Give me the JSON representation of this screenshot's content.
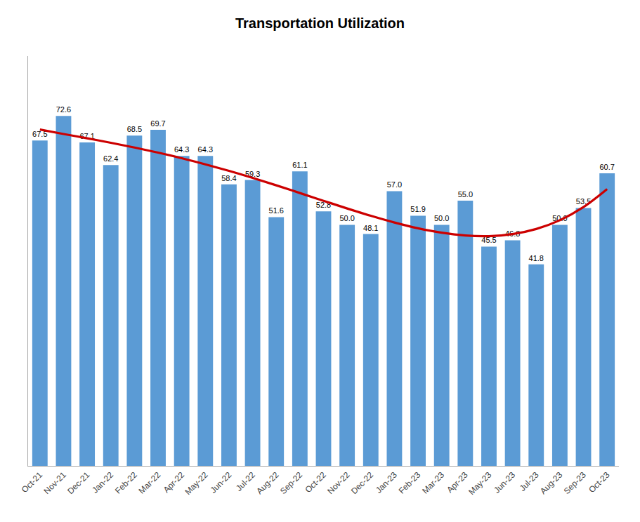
{
  "chart_data": {
    "type": "bar",
    "title": "Transportation Utilization",
    "categories": [
      "Oct-21",
      "Nov-21",
      "Dec-21",
      "Jan-22",
      "Feb-22",
      "Mar-22",
      "Apr-22",
      "May-22",
      "Jun-22",
      "Jul-22",
      "Aug-22",
      "Sep-22",
      "Oct-22",
      "Nov-22",
      "Dec-22",
      "Jan-23",
      "Feb-23",
      "Mar-23",
      "Apr-23",
      "May-23",
      "Jun-23",
      "Jul-23",
      "Aug-23",
      "Sep-23",
      "Oct-23"
    ],
    "series": [
      {
        "type": "bar",
        "color": "#5b9bd5",
        "values": [
          67.5,
          72.6,
          67.1,
          62.4,
          68.5,
          69.7,
          64.3,
          64.3,
          58.4,
          59.3,
          51.6,
          61.1,
          52.8,
          50.0,
          48.1,
          57.0,
          51.9,
          50.0,
          55.0,
          45.5,
          46.8,
          41.8,
          50.0,
          53.5,
          60.7
        ],
        "value_labels": [
          "67.5",
          "72.6",
          "67.1",
          "62.4",
          "68.5",
          "69.7",
          "64.3",
          "64.3",
          "58.4",
          "59.3",
          "51.6",
          "61.1",
          "52.8",
          "50.0",
          "48.1",
          "57.0",
          "51.9",
          "50.0",
          "55.0",
          "45.5",
          "46.8",
          "41.8",
          "50.0",
          "53.5",
          "60.7"
        ]
      },
      {
        "type": "line",
        "color": "#cc0000",
        "line_style": "solid",
        "values": [
          69.77,
          68.85,
          67.95,
          67.03,
          66.05,
          64.98,
          63.83,
          62.56,
          61.2,
          59.74,
          58.2,
          56.6,
          54.99,
          53.4,
          51.88,
          50.49,
          49.29,
          48.37,
          47.79,
          47.66,
          48.08,
          49.14,
          50.96,
          53.68,
          57.41
        ]
      }
    ],
    "ylim": [
      0,
      85
    ],
    "data_labels": true,
    "tick_labels": "x",
    "grid": false
  }
}
